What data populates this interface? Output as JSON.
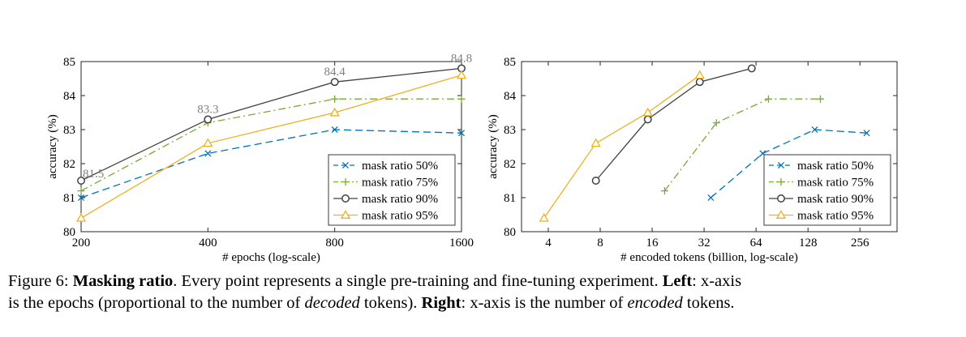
{
  "chart_data": [
    {
      "type": "line",
      "xlabel": "# epochs (log-scale)",
      "ylabel": "accuracy (%)",
      "x_scale": "log",
      "x": [
        200,
        400,
        800,
        1600
      ],
      "x_tick_labels": [
        "200",
        "400",
        "800",
        "1600"
      ],
      "ylim": [
        80,
        85
      ],
      "y_ticks": [
        "80",
        "81",
        "82",
        "83",
        "84",
        "85"
      ],
      "legend_position": "bottom-right",
      "series": [
        {
          "name": "mask ratio 50%",
          "color": "#0072BD",
          "marker": "x",
          "dash": "dashed",
          "x": [
            200,
            400,
            800,
            1600
          ],
          "values": [
            81.0,
            82.3,
            83.0,
            82.9
          ]
        },
        {
          "name": "mask ratio 75%",
          "color": "#77AC30",
          "marker": "+",
          "dash": "dashdot",
          "x": [
            200,
            400,
            800,
            1600
          ],
          "values": [
            81.2,
            83.2,
            83.9,
            83.9
          ]
        },
        {
          "name": "mask ratio 90%",
          "color": "#404040",
          "marker": "o",
          "dash": "solid",
          "x": [
            200,
            400,
            800,
            1600
          ],
          "values": [
            81.5,
            83.3,
            84.4,
            84.8
          ]
        },
        {
          "name": "mask ratio 95%",
          "color": "#EDB120",
          "marker": "triangle",
          "dash": "solid",
          "x": [
            200,
            400,
            800,
            1600
          ],
          "values": [
            80.4,
            82.6,
            83.5,
            84.6
          ]
        }
      ],
      "annotations": [
        {
          "text": "81.5",
          "x": 200,
          "y": 81.5
        },
        {
          "text": "83.3",
          "x": 400,
          "y": 83.3
        },
        {
          "text": "84.4",
          "x": 800,
          "y": 84.4
        },
        {
          "text": "84.8",
          "x": 1600,
          "y": 84.8
        }
      ]
    },
    {
      "type": "line",
      "xlabel": "# encoded tokens (billion, log-scale)",
      "ylabel": "accuracy (%)",
      "x_scale": "log",
      "x_ticks": [
        4,
        8,
        16,
        32,
        64,
        128,
        256
      ],
      "x_tick_labels": [
        "4",
        "8",
        "16",
        "32",
        "64",
        "128",
        "256"
      ],
      "xlim": [
        2.8,
        420
      ],
      "ylim": [
        80,
        85
      ],
      "y_ticks": [
        "80",
        "81",
        "82",
        "83",
        "84",
        "85"
      ],
      "legend_position": "bottom-right",
      "series": [
        {
          "name": "mask ratio 50%",
          "color": "#0072BD",
          "marker": "x",
          "dash": "dashed",
          "x": [
            35,
            70,
            140,
            280
          ],
          "values": [
            81.0,
            82.3,
            83.0,
            82.9
          ]
        },
        {
          "name": "mask ratio 75%",
          "color": "#77AC30",
          "marker": "+",
          "dash": "dashdot",
          "x": [
            18.9,
            37.7,
            75.5,
            151
          ],
          "values": [
            81.2,
            83.2,
            83.9,
            83.9
          ]
        },
        {
          "name": "mask ratio 90%",
          "color": "#404040",
          "marker": "o",
          "dash": "solid",
          "x": [
            7.55,
            15.1,
            30.2,
            60.4
          ],
          "values": [
            81.5,
            83.3,
            84.4,
            84.8
          ]
        },
        {
          "name": "mask ratio 95%",
          "color": "#EDB120",
          "marker": "triangle",
          "dash": "solid",
          "x": [
            3.78,
            7.55,
            15.1,
            30.2
          ],
          "values": [
            80.4,
            82.6,
            83.5,
            84.6
          ]
        }
      ]
    }
  ],
  "caption": {
    "label": "Figure 6:",
    "title": "Masking ratio",
    "text1": ". Every point represents a single pre-training and fine-tuning experiment.",
    "left_label": "Left",
    "text2": ": x-axis",
    "text3": "is the epochs (proportional to the number of",
    "decoded": "decoded",
    "text4": "tokens).",
    "right_label": "Right",
    "text5": ": x-axis is the number of",
    "encoded": "encoded",
    "text6": "tokens."
  }
}
